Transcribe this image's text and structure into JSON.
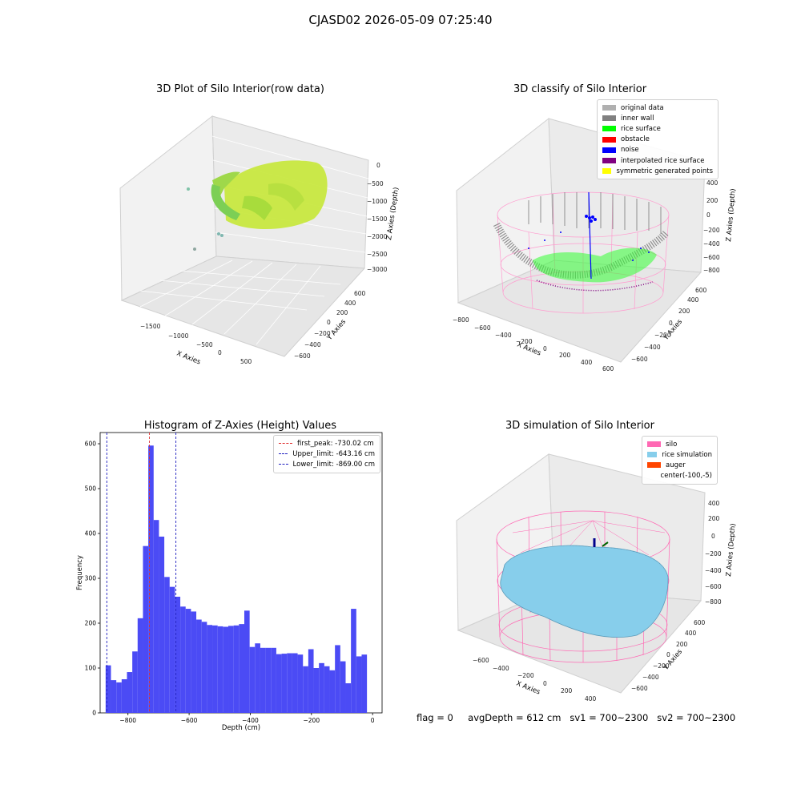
{
  "figure": {
    "suptitle": "CJASD02 2026-05-09 07:25:40"
  },
  "status": {
    "flag": "flag = 0",
    "avg_depth": "avgDepth = 612 cm",
    "sv1": "sv1 = 700~2300",
    "sv2": "sv2 = 700~2300"
  },
  "colors": {
    "hist_bar": "#4b4bf5",
    "first_peak": "#e03030",
    "limits": "#2020c0",
    "silo": "#ff69b4",
    "rice_sim": "#87ceeb",
    "auger": "#ff4500",
    "rice_surface": "#00ff00",
    "noise": "#0000ff",
    "inner_wall": "#808080"
  },
  "panels": {
    "raw": {
      "title": "3D Plot of Silo Interior(row data)",
      "x_label": "X Axies",
      "y_label": "Y Axies",
      "z_label": "Z Axies (Depth)",
      "x_ticks": [
        "−1500",
        "−1000",
        "−500",
        "0",
        "500"
      ],
      "y_ticks": [
        "−600",
        "−400",
        "−200",
        "0",
        "200",
        "400",
        "600"
      ],
      "z_ticks": [
        "0",
        "−500",
        "−1000",
        "−1500",
        "−2000",
        "−2500",
        "−3000"
      ]
    },
    "classify": {
      "title": "3D classify of Silo Interior",
      "x_label": "X Axies",
      "y_label": "Y Axies",
      "z_label": "Z Axies (Depth)",
      "x_ticks": [
        "−800",
        "−600",
        "−400",
        "−200",
        "0",
        "200",
        "400",
        "600"
      ],
      "y_ticks": [
        "−600",
        "−400",
        "−200",
        "0",
        "200",
        "400",
        "600"
      ],
      "z_ticks": [
        "400",
        "200",
        "0",
        "−200",
        "−400",
        "−600",
        "−800"
      ],
      "legend": [
        {
          "label": "original data",
          "color": "#b0b0b0"
        },
        {
          "label": "inner wall",
          "color": "#808080"
        },
        {
          "label": "rice surface",
          "color": "#00ff00"
        },
        {
          "label": "obstacle",
          "color": "#ff0000"
        },
        {
          "label": "noise",
          "color": "#0000ff"
        },
        {
          "label": "interpolated rice surface",
          "color": "#800080"
        },
        {
          "label": "symmetric generated points",
          "color": "#ffff00"
        }
      ]
    },
    "simulation": {
      "title": "3D simulation of Silo Interior",
      "x_label": "X Axies",
      "y_label": "Y Axies",
      "z_label": "Z Axies (Depth)",
      "x_ticks": [
        "−600",
        "−400",
        "−200",
        "0",
        "200",
        "400"
      ],
      "y_ticks": [
        "−600",
        "−400",
        "−200",
        "0",
        "200",
        "400",
        "600"
      ],
      "z_ticks": [
        "400",
        "200",
        "0",
        "−200",
        "−400",
        "−600",
        "−800"
      ],
      "legend": [
        {
          "label": "silo",
          "color": "#ff69b4"
        },
        {
          "label": "rice simulation",
          "color": "#87ceeb"
        },
        {
          "label": "auger",
          "color": "#ff4500"
        },
        {
          "label": "center(-100,-5)",
          "color": ""
        }
      ]
    }
  },
  "chart_data": {
    "type": "bar",
    "title": "Histogram of Z-Axies (Height) Values",
    "xlabel": "Depth (cm)",
    "ylabel": "Frequency",
    "xlim": [
      -891,
      31
    ],
    "ylim": [
      0,
      625
    ],
    "x_ticks": [
      -800,
      -600,
      -400,
      -200,
      0
    ],
    "y_ticks": [
      0,
      100,
      200,
      300,
      400,
      500,
      600
    ],
    "bin_start": -873,
    "bin_width": 17.44,
    "values": [
      106,
      73,
      68,
      75,
      91,
      137,
      211,
      372,
      596,
      430,
      393,
      303,
      281,
      259,
      237,
      232,
      226,
      208,
      203,
      196,
      195,
      193,
      192,
      194,
      195,
      198,
      228,
      147,
      155,
      145,
      145,
      145,
      131,
      132,
      133,
      133,
      130,
      104,
      142,
      100,
      111,
      104,
      95,
      151,
      115,
      66,
      232,
      126,
      130
    ],
    "lines": [
      {
        "name": "first_peak",
        "label": "first_peak: -730.02 cm",
        "x": -730.02,
        "color": "#e03030"
      },
      {
        "name": "upper_limit",
        "label": "Upper_limit: -643.16 cm",
        "x": -643.16,
        "color": "#2020c0"
      },
      {
        "name": "lower_limit",
        "label": "Lower_limit: -869.00 cm",
        "x": -869.0,
        "color": "#2020c0"
      }
    ],
    "legend_position": "top-right",
    "grid": false
  }
}
